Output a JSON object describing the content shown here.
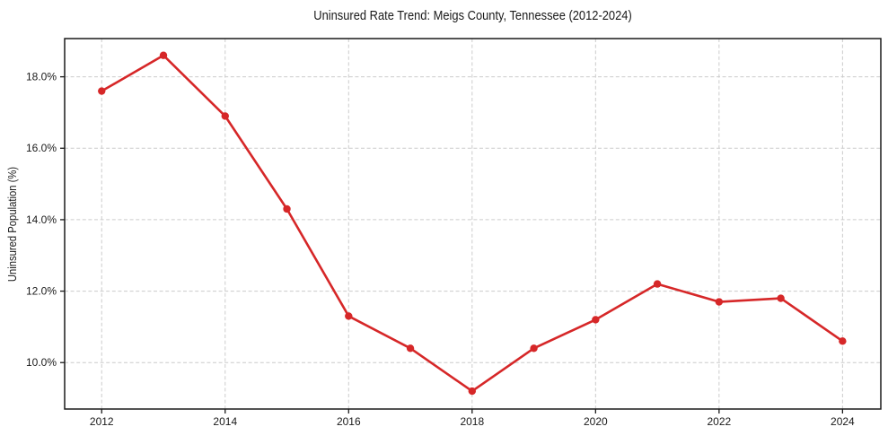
{
  "chart_data": {
    "type": "line",
    "title": "Uninsured Rate Trend: Meigs County, Tennessee (2012-2024)",
    "xlabel": "",
    "ylabel": "Uninsured Population (%)",
    "x": [
      2012,
      2013,
      2014,
      2015,
      2016,
      2017,
      2018,
      2019,
      2020,
      2021,
      2022,
      2023,
      2024
    ],
    "values": [
      17.6,
      18.6,
      16.9,
      14.3,
      11.3,
      10.4,
      9.2,
      10.4,
      11.2,
      12.2,
      11.7,
      11.8,
      10.6
    ],
    "unit": "%",
    "xticks": [
      2012,
      2014,
      2016,
      2018,
      2020,
      2022,
      2024
    ],
    "xtick_labels": [
      "2012",
      "2014",
      "2016",
      "2018",
      "2020",
      "2022",
      "2024"
    ],
    "yticks": [
      10,
      12,
      14,
      16,
      18
    ],
    "ytick_labels": [
      "10.0%",
      "12.0%",
      "14.0%",
      "16.0%",
      "18.0%"
    ],
    "xlim": [
      2011.4,
      2024.62
    ],
    "ylim": [
      8.7,
      19.07
    ],
    "grid": true,
    "grid_style": "dashed",
    "legend": "none",
    "marker": "circle",
    "colors": {
      "line": "#d62728",
      "marker": "#d62728",
      "grid": "#cccccc",
      "axis_border": "#1a1a1a",
      "text": "#1a1a1a",
      "background": "#ffffff"
    }
  }
}
